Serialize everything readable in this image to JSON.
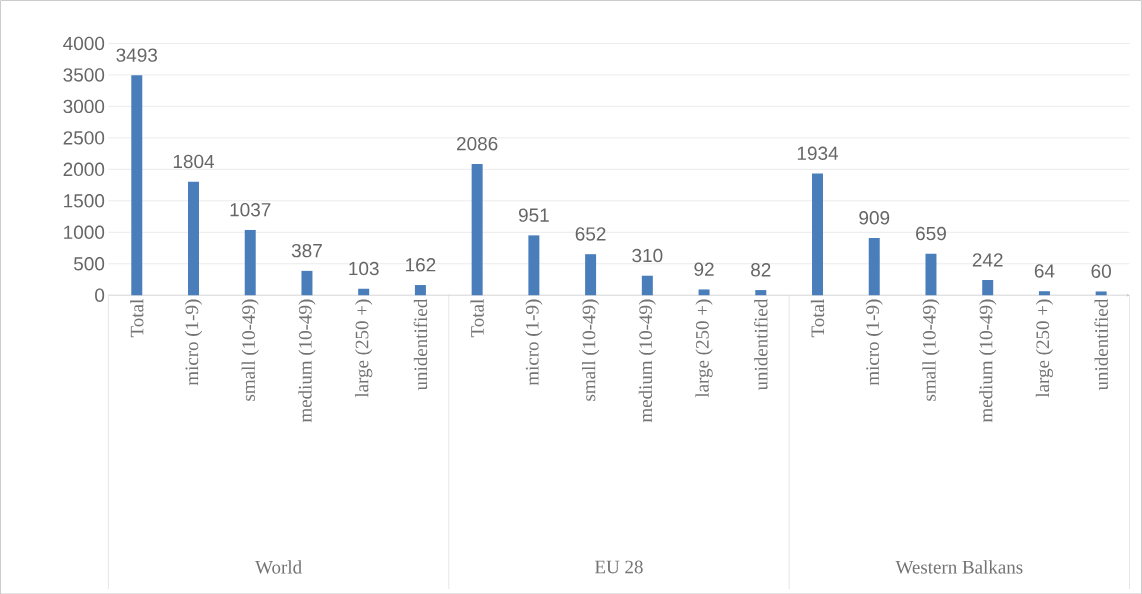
{
  "chart_data": {
    "type": "bar",
    "categories": [
      "Total",
      "micro  (1-9)",
      "small  (10-49)",
      "medium  (10-49)",
      "large   (250 +)",
      "unidentified",
      "Total",
      "micro  (1-9)",
      "small  (10-49)",
      "medium  (10-49)",
      "large   (250 +)",
      "unidentified",
      "Total",
      "micro  (1-9)",
      "small  (10-49)",
      "medium  (10-49)",
      "large   (250 +)",
      "unidentified"
    ],
    "values": [
      3493,
      1804,
      1037,
      387,
      103,
      162,
      2086,
      951,
      652,
      310,
      92,
      82,
      1934,
      909,
      659,
      242,
      64,
      60
    ],
    "color": "#4a7ebb",
    "ylim": [
      0,
      4000
    ],
    "yticks": [
      0,
      500,
      1000,
      1500,
      2000,
      2500,
      3000,
      3500,
      4000
    ],
    "grid": "y",
    "data_labels": true,
    "annotations": [
      "World",
      "EU 28",
      "Western Balkans"
    ]
  }
}
